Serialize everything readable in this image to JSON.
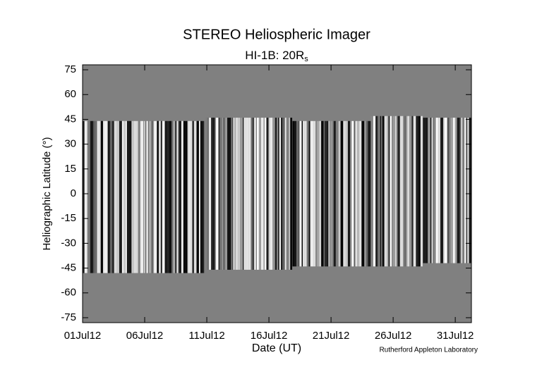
{
  "chart_data": {
    "type": "coverage-map",
    "title": "STEREO Heliospheric Imager",
    "subtitle": "HI-1B: 20R",
    "subtitle_subscript": "s",
    "x_label": "Date (UT)",
    "y_label": "Heliographic Latitude (°)",
    "credit": "Rutherford Appleton Laboratory",
    "background_color": "#808080",
    "xlim": [
      1,
      32.3
    ],
    "xticks": [
      {
        "value": 1,
        "label": "01Jul12"
      },
      {
        "value": 6,
        "label": "06Jul12"
      },
      {
        "value": 11,
        "label": "11Jul12"
      },
      {
        "value": 16,
        "label": "16Jul12"
      },
      {
        "value": 21,
        "label": "21Jul12"
      },
      {
        "value": 26,
        "label": "26Jul12"
      },
      {
        "value": 31,
        "label": "31Jul12"
      }
    ],
    "ylim": [
      -78,
      78
    ],
    "yticks": [
      -75,
      -60,
      -45,
      -30,
      -15,
      0,
      15,
      30,
      45,
      60,
      75
    ],
    "segments": {
      "start": [
        1,
        10.8,
        17.9,
        24.2,
        28.4
      ],
      "end": [
        10.8,
        17.9,
        24.2,
        28.4,
        32.3
      ],
      "top": [
        44,
        46,
        44,
        47,
        46
      ],
      "bottom": [
        -48,
        -46,
        -44,
        -44,
        -42
      ]
    }
  }
}
